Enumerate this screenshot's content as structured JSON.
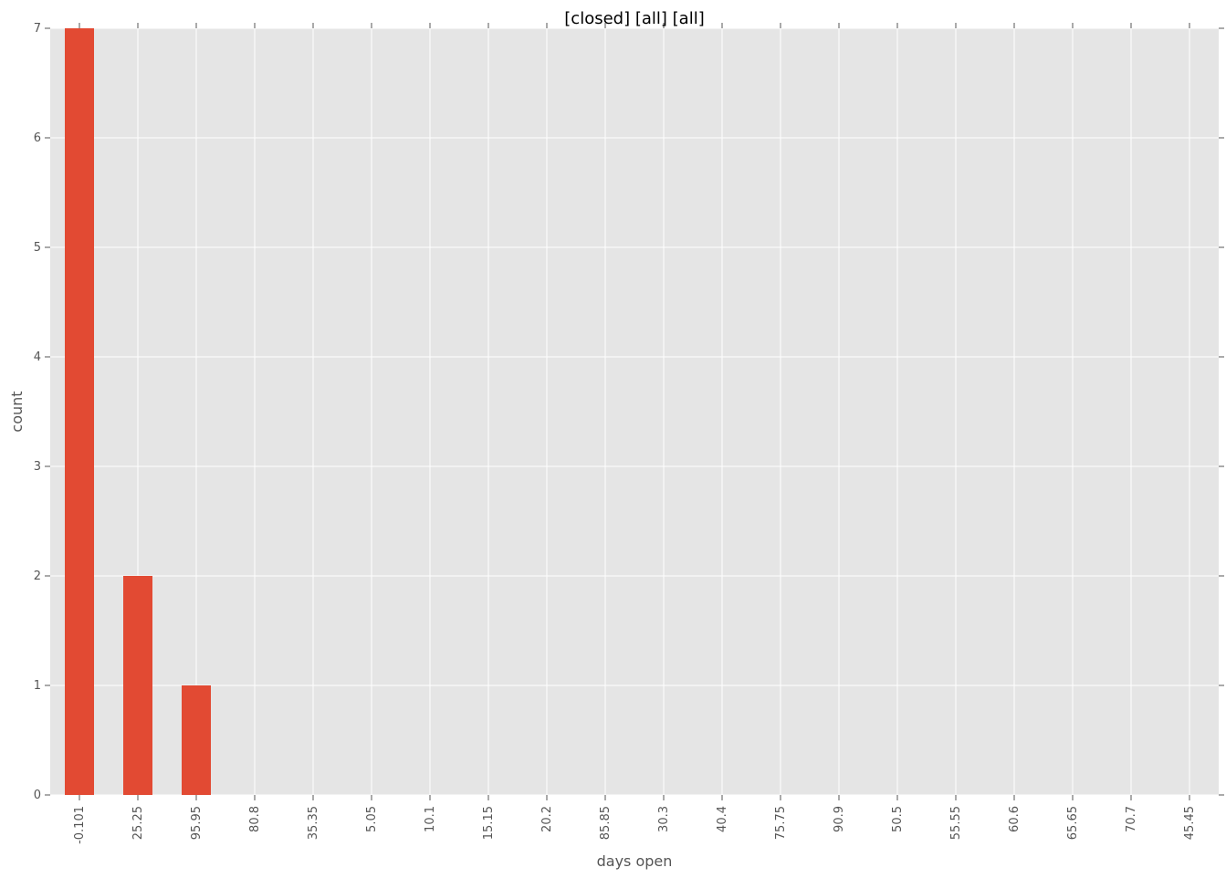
{
  "chart_data": {
    "type": "bar",
    "title": "[closed] [all] [all]",
    "xlabel": "days open",
    "ylabel": "count",
    "categories": [
      "-0.101",
      "25.25",
      "95.95",
      "80.8",
      "35.35",
      "5.05",
      "10.1",
      "15.15",
      "20.2",
      "85.85",
      "30.3",
      "40.4",
      "75.75",
      "90.9",
      "50.5",
      "55.55",
      "60.6",
      "65.65",
      "70.7",
      "45.45"
    ],
    "values": [
      7,
      2,
      1,
      0,
      0,
      0,
      0,
      0,
      0,
      0,
      0,
      0,
      0,
      0,
      0,
      0,
      0,
      0,
      0,
      0
    ],
    "ylim": [
      0,
      7
    ],
    "yticks": [
      0,
      1,
      2,
      3,
      4,
      5,
      6,
      7
    ],
    "grid": true,
    "legend": "none",
    "colors": {
      "bar": "#e24a33",
      "plot_background": "#e5e5e5",
      "grid": "#ffffff"
    }
  }
}
